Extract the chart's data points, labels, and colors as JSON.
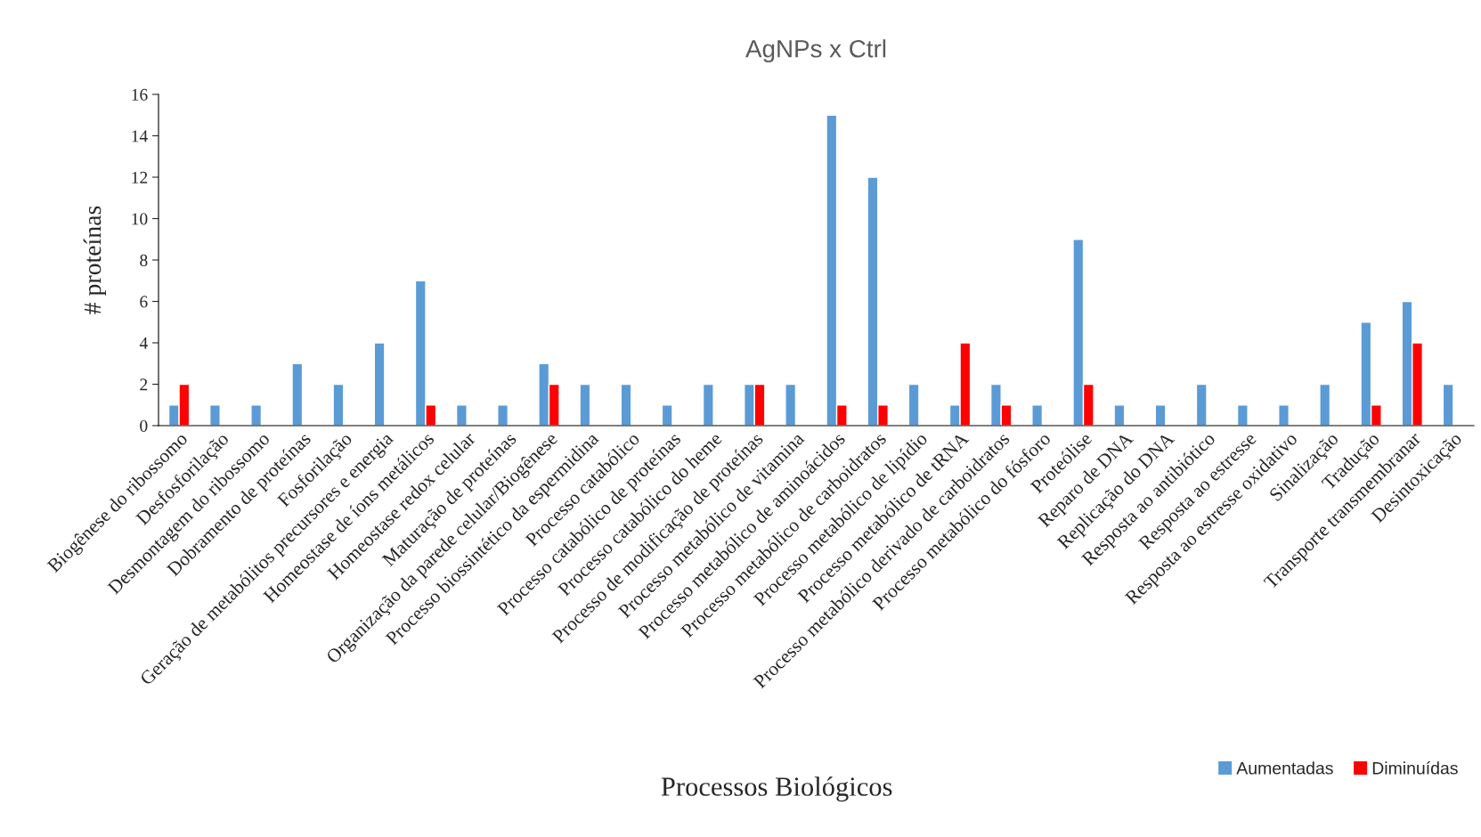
{
  "chart_data": {
    "type": "bar",
    "title": "AgNPs x Ctrl",
    "xlabel": "Processos Biológicos",
    "ylabel": "# proteínas",
    "categories": [
      "Biogênese do ribossomo",
      "Desfosforilação",
      "Desmontagem do ribossomo",
      "Dobramento de proteínas",
      "Fosforilação",
      "Geração de metabólitos precursores e energia",
      "Homeostase de íons metálicos",
      "Homeostase redox celular",
      "Maturação de proteínas",
      "Organização da parede celular/Biogênese",
      "Processo biossintético da espermidina",
      "Processo catabólico",
      "Processo catabólico de proteínas",
      "Processo catabólico do heme",
      "Processo de modificação de proteínas",
      "Processo metabólico de vitamina",
      "Processo metabólico de aminoácidos",
      "Processo metabólico de carboidratos",
      "Processo metabólico de lipídio",
      "Processo metabólico de tRNA",
      "Processo metabólico derivado de carboidratos",
      "Processo metabólico do fósforo",
      "Proteólise",
      "Reparo de DNA",
      "Replicação do DNA",
      "Resposta ao antibiótico",
      "Resposta ao estresse",
      "Resposta ao estresse oxidativo",
      "Sinalização",
      "Tradução",
      "Transporte transmembranar",
      "Desintoxicação"
    ],
    "series": [
      {
        "name": "Aumentadas",
        "color": "#5b9bd5",
        "values": [
          1,
          1,
          1,
          3,
          2,
          4,
          7,
          1,
          1,
          3,
          2,
          2,
          1,
          2,
          2,
          2,
          15,
          12,
          2,
          1,
          2,
          1,
          9,
          1,
          1,
          2,
          1,
          1,
          2,
          5,
          6,
          2
        ]
      },
      {
        "name": "Diminuídas",
        "color": "#ff0000",
        "values": [
          2,
          null,
          null,
          null,
          null,
          null,
          1,
          null,
          null,
          2,
          null,
          null,
          null,
          null,
          2,
          null,
          1,
          1,
          null,
          4,
          1,
          null,
          2,
          null,
          null,
          null,
          null,
          null,
          null,
          1,
          4,
          null
        ]
      }
    ],
    "ylim": [
      0,
      16
    ],
    "yticks": [
      0,
      2,
      4,
      6,
      8,
      10,
      12,
      14,
      16
    ],
    "grid": false,
    "legend": "bottom right"
  }
}
